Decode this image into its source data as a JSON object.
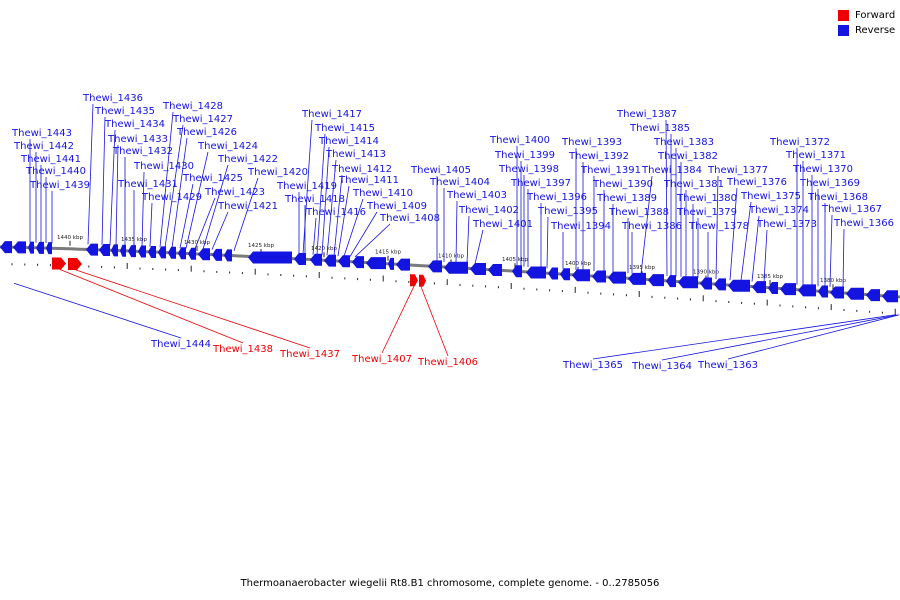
{
  "legend": {
    "forward_label": "Forward",
    "reverse_label": "Reverse",
    "forward_color": "#ee0000",
    "reverse_color": "#1414e0"
  },
  "caption": "Thermoanaerobacter wiegelii Rt8.B1 chromosome, complete genome. - 0..2785056",
  "colors": {
    "backbone": "#7a7a7a",
    "forward": "#ee0000",
    "reverse": "#1414e0",
    "tick": "#222222"
  },
  "ruler": {
    "labels": [
      "1440 kbp",
      "1435 kbp",
      "1430 kbp",
      "1425 kbp",
      "1420 kbp",
      "1415 kbp",
      "1410 kbp",
      "1405 kbp",
      "1400 kbp",
      "1395 kbp",
      "1390 kbp",
      "1385 kbp",
      "1380 kbp"
    ]
  },
  "genes_reverse": [
    "Thewi_1443",
    "Thewi_1442",
    "Thewi_1441",
    "Thewi_1440",
    "Thewi_1439",
    "Thewi_1436",
    "Thewi_1435",
    "Thewi_1434",
    "Thewi_1433",
    "Thewi_1432",
    "Thewi_1431",
    "Thewi_1430",
    "Thewi_1429",
    "Thewi_1428",
    "Thewi_1427",
    "Thewi_1426",
    "Thewi_1425",
    "Thewi_1424",
    "Thewi_1423",
    "Thewi_1422",
    "Thewi_1421",
    "Thewi_1420",
    "Thewi_1419",
    "Thewi_1418",
    "Thewi_1417",
    "Thewi_1416",
    "Thewi_1415",
    "Thewi_1414",
    "Thewi_1413",
    "Thewi_1412",
    "Thewi_1411",
    "Thewi_1410",
    "Thewi_1409",
    "Thewi_1408",
    "Thewi_1405",
    "Thewi_1404",
    "Thewi_1403",
    "Thewi_1402",
    "Thewi_1401",
    "Thewi_1400",
    "Thewi_1399",
    "Thewi_1398",
    "Thewi_1397",
    "Thewi_1396",
    "Thewi_1395",
    "Thewi_1394",
    "Thewi_1393",
    "Thewi_1392",
    "Thewi_1391",
    "Thewi_1390",
    "Thewi_1389",
    "Thewi_1388",
    "Thewi_1387",
    "Thewi_1386",
    "Thewi_1385",
    "Thewi_1384",
    "Thewi_1383",
    "Thewi_1382",
    "Thewi_1381",
    "Thewi_1380",
    "Thewi_1379",
    "Thewi_1378",
    "Thewi_1377",
    "Thewi_1376",
    "Thewi_1375",
    "Thewi_1374",
    "Thewi_1373",
    "Thewi_1372",
    "Thewi_1371",
    "Thewi_1370",
    "Thewi_1369",
    "Thewi_1368",
    "Thewi_1367",
    "Thewi_1366"
  ],
  "genes_forward": [
    "Thewi_1438",
    "Thewi_1437",
    "Thewi_1407",
    "Thewi_1406"
  ],
  "genes_reverse_below": [
    "Thewi_1444",
    "Thewi_1365",
    "Thewi_1364",
    "Thewi_1363"
  ]
}
